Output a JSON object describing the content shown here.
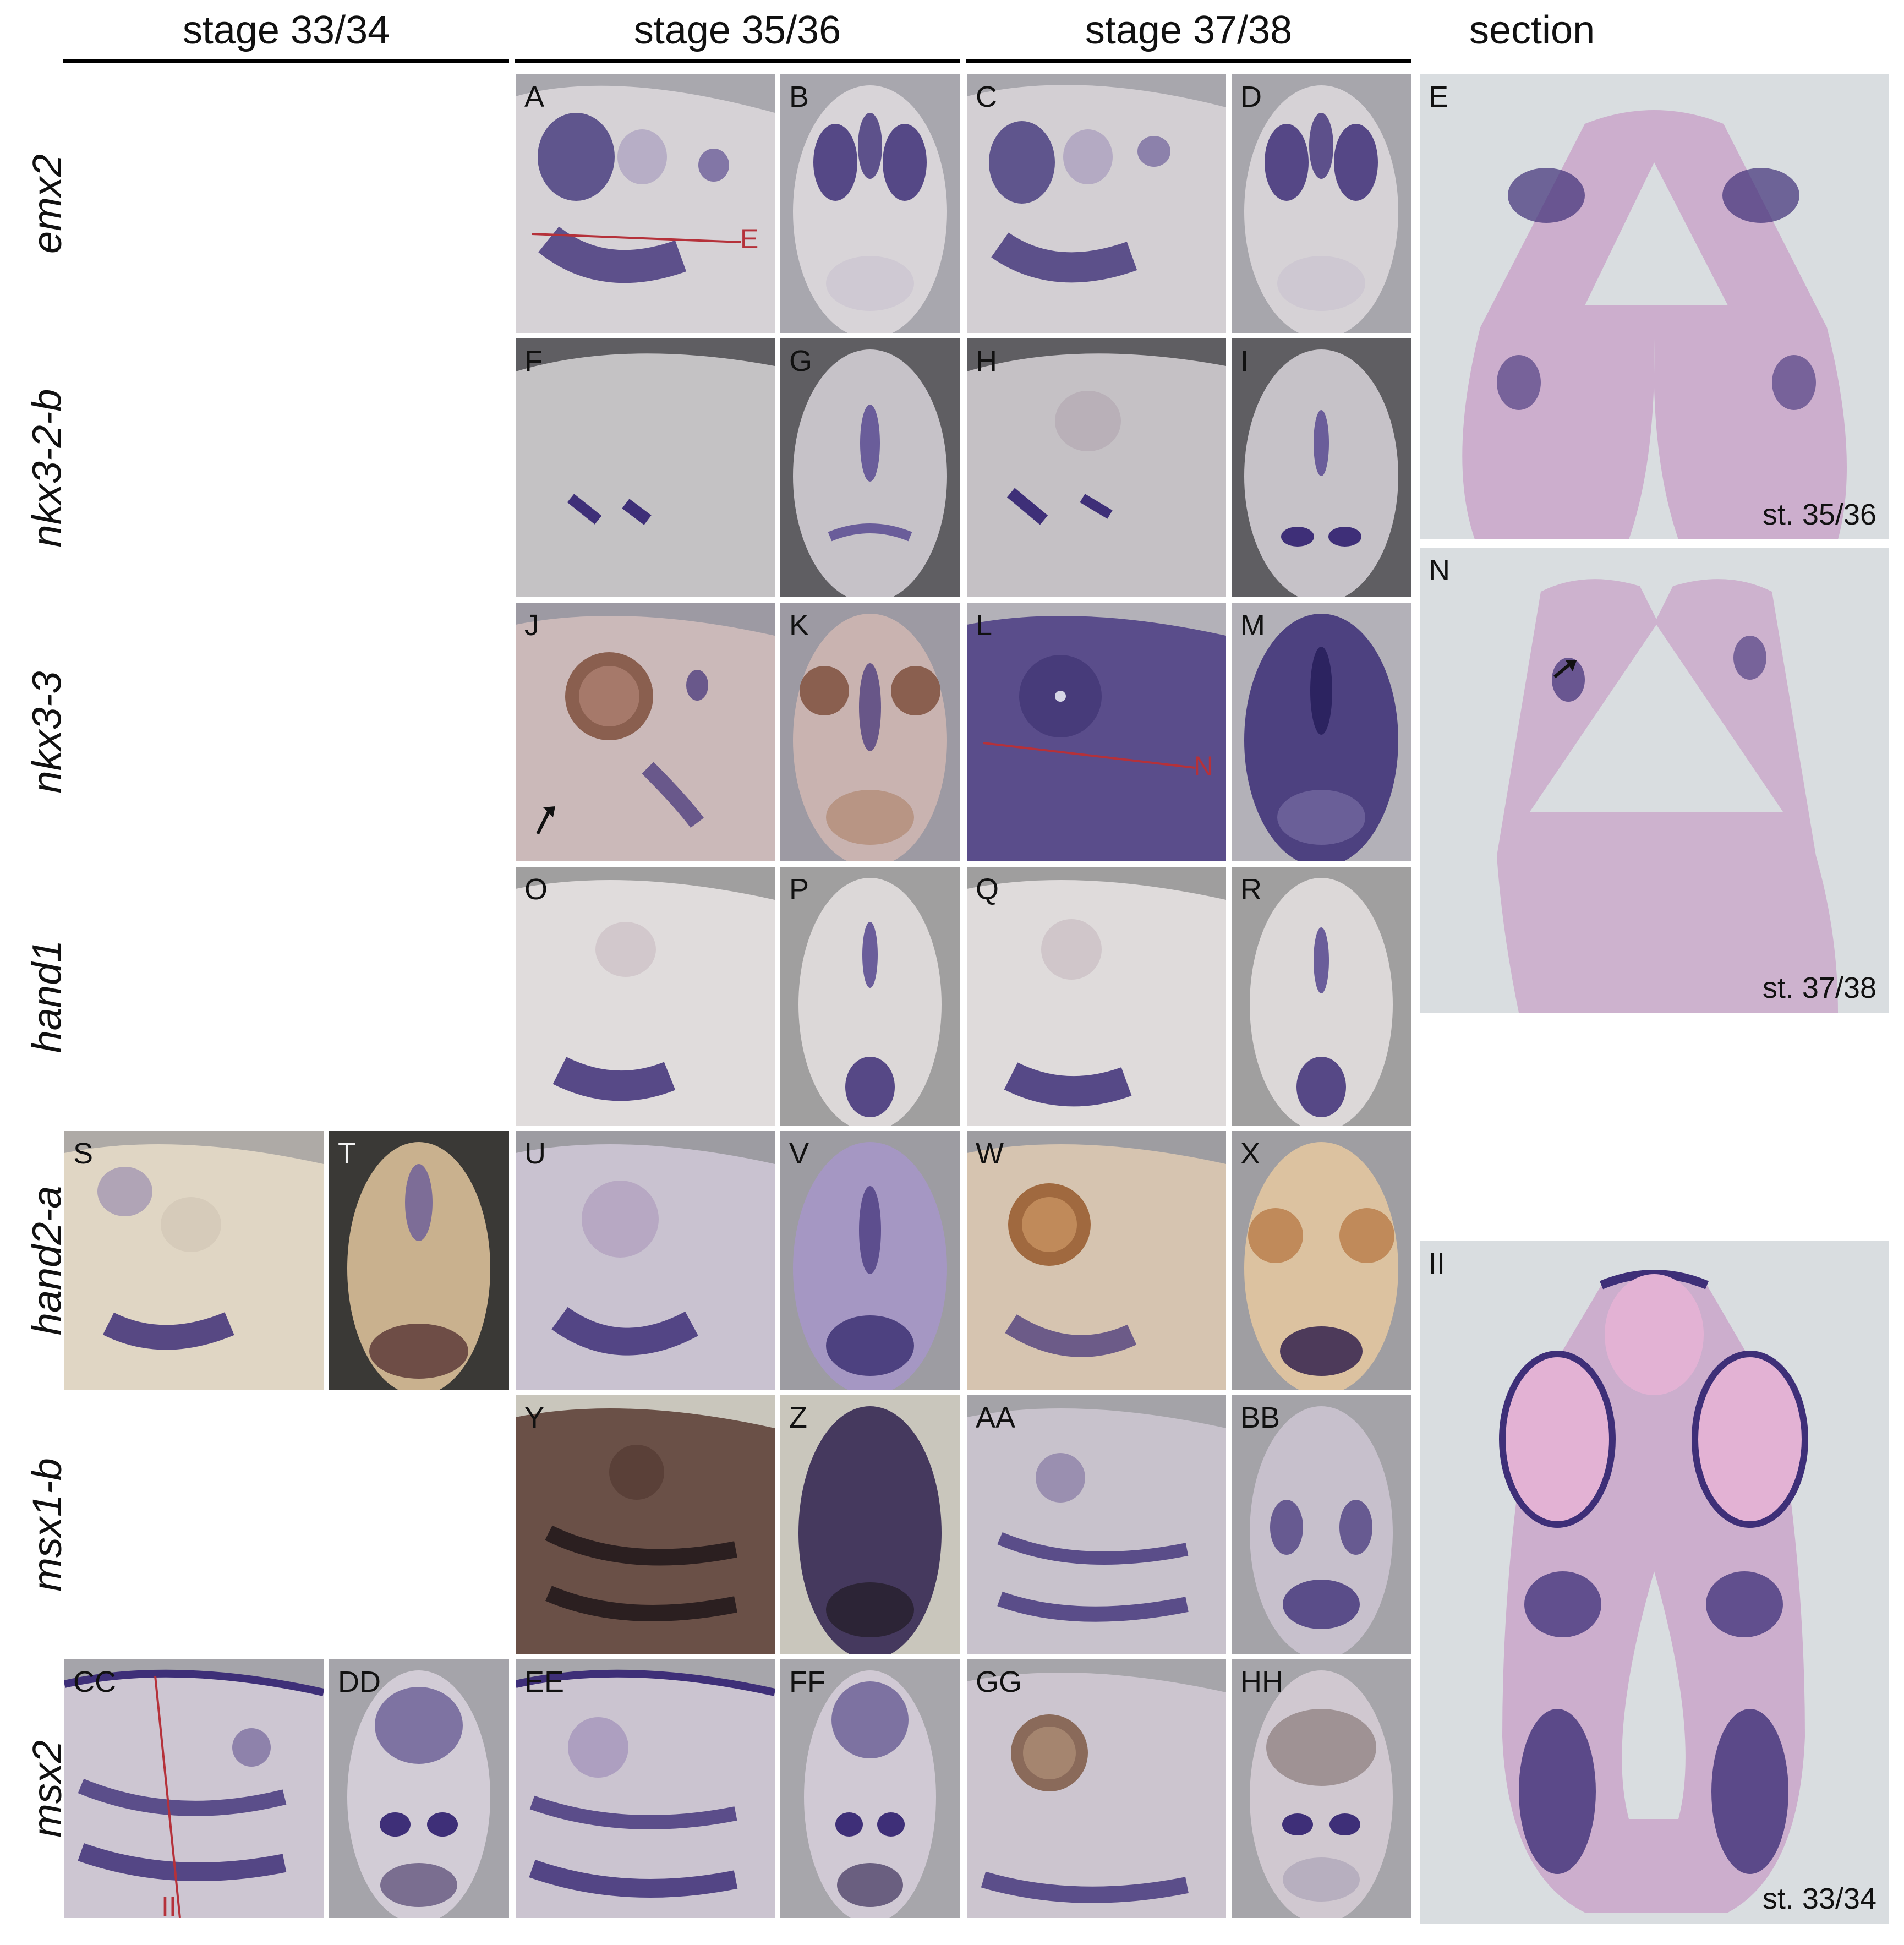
{
  "headers": {
    "stage_33_34": "stage 33/34",
    "stage_35_36": "stage 35/36",
    "stage_37_38": "stage 37/38",
    "section": "section"
  },
  "genes": {
    "emx2": "emx2",
    "nkx3_2_b": "nkx3-2-b",
    "nkx3_3": "nkx3-3",
    "hand1": "hand1",
    "hand2_a": "hand2-a",
    "msx1_b": "msx1-b",
    "msx2": "msx2"
  },
  "panels": {
    "A": "A",
    "B": "B",
    "C": "C",
    "D": "D",
    "E": "E",
    "F": "F",
    "G": "G",
    "H": "H",
    "I": "I",
    "J": "J",
    "K": "K",
    "L": "L",
    "M": "M",
    "N": "N",
    "O": "O",
    "P": "P",
    "Q": "Q",
    "R": "R",
    "S": "S",
    "T": "T",
    "U": "U",
    "V": "V",
    "W": "W",
    "X": "X",
    "Y": "Y",
    "Z": "Z",
    "AA": "AA",
    "BB": "BB",
    "CC": "CC",
    "DD": "DD",
    "EE": "EE",
    "FF": "FF",
    "GG": "GG",
    "HH": "HH",
    "II": "II"
  },
  "section_marks": {
    "E": "E",
    "N": "N",
    "II": "II"
  },
  "section_stages": {
    "E": "st. 35/36",
    "N": "st. 37/38",
    "II": "st. 33/34"
  },
  "colors": {
    "stain": "#3e2f78",
    "section_bg": "#d9dde0",
    "tissue": "#c8a3c8",
    "marker_line": "#b5313a"
  }
}
